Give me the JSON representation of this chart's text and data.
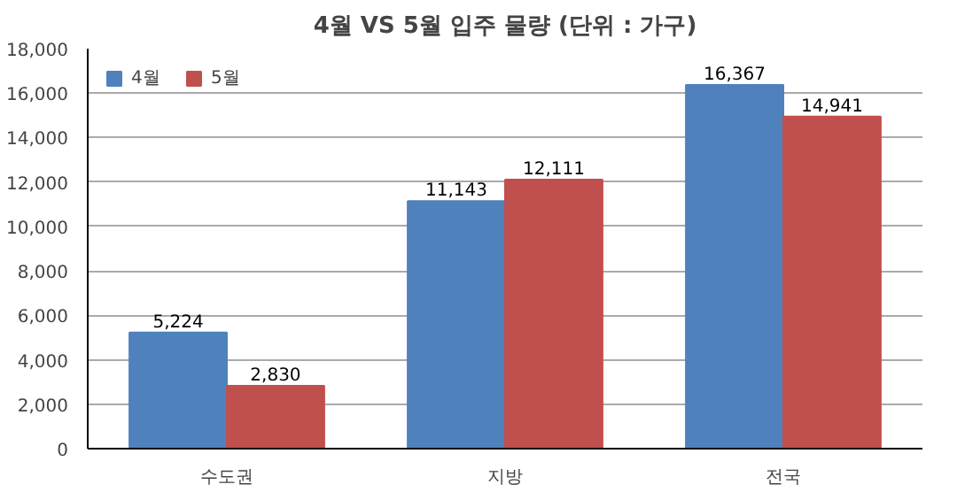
{
  "chart_data": {
    "type": "bar",
    "title": "4월 VS 5월 입주 물량 (단위 : 가구)",
    "categories": [
      "수도권",
      "지방",
      "전국"
    ],
    "series": [
      {
        "name": "4월",
        "color": "#4f81bd",
        "values": [
          5224,
          11143,
          16367
        ],
        "value_labels": [
          "5,224",
          "11,143",
          "16,367"
        ]
      },
      {
        "name": "5월",
        "color": "#c0504d",
        "values": [
          2830,
          12111,
          14941
        ],
        "value_labels": [
          "2,830",
          "12,111",
          "14,941"
        ]
      }
    ],
    "ylim": [
      0,
      18000
    ],
    "yticks": [
      {
        "value": 0,
        "label": "0"
      },
      {
        "value": 2000,
        "label": "2,000"
      },
      {
        "value": 4000,
        "label": "4,000"
      },
      {
        "value": 6000,
        "label": "6,000"
      },
      {
        "value": 8000,
        "label": "8,000"
      },
      {
        "value": 10000,
        "label": "10,000"
      },
      {
        "value": 12000,
        "label": "12,000"
      },
      {
        "value": 14000,
        "label": "14,000"
      },
      {
        "value": 16000,
        "label": "16,000"
      },
      {
        "value": 18000,
        "label": "18,000"
      }
    ],
    "grid": "y",
    "legend": "top left"
  }
}
